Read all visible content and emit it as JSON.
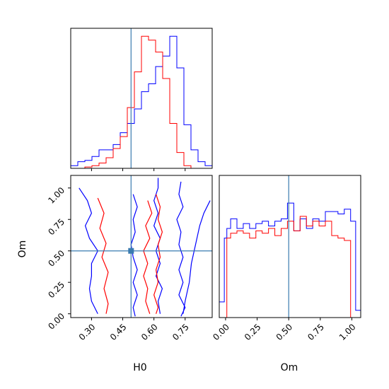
{
  "chart_data": [
    {
      "type": "histogram",
      "panel": "H0 marginal",
      "xlim": [
        0.2,
        0.88
      ],
      "truth": 0.49,
      "series": [
        {
          "color": "#0000ff",
          "edges": [
            0.2,
            0.234,
            0.268,
            0.302,
            0.336,
            0.37,
            0.404,
            0.438,
            0.472,
            0.506,
            0.54,
            0.574,
            0.608,
            0.642,
            0.676,
            0.71,
            0.744,
            0.778,
            0.812,
            0.846,
            0.88
          ],
          "heights": [
            0.02,
            0.05,
            0.06,
            0.09,
            0.14,
            0.14,
            0.18,
            0.27,
            0.34,
            0.45,
            0.58,
            0.64,
            0.77,
            0.85,
            1.0,
            0.76,
            0.33,
            0.14,
            0.05,
            0.02
          ]
        },
        {
          "color": "#ff0000",
          "edges": [
            0.2,
            0.234,
            0.268,
            0.302,
            0.336,
            0.37,
            0.404,
            0.438,
            0.472,
            0.506,
            0.54,
            0.574,
            0.608,
            0.642,
            0.676,
            0.71,
            0.744,
            0.778,
            0.812,
            0.846,
            0.88
          ],
          "heights": [
            0,
            0,
            0.01,
            0.02,
            0.04,
            0.08,
            0.15,
            0.24,
            0.46,
            0.73,
            1.0,
            0.97,
            0.88,
            0.68,
            0.34,
            0.12,
            0.02,
            0,
            0,
            0
          ]
        }
      ]
    },
    {
      "type": "histogram",
      "panel": "Om marginal",
      "xlim": [
        -0.05,
        1.07
      ],
      "truth": 0.5,
      "series": [
        {
          "color": "#0000ff",
          "edges": [
            -0.05,
            -0.01,
            0.01,
            0.04,
            0.09,
            0.14,
            0.19,
            0.24,
            0.29,
            0.34,
            0.39,
            0.44,
            0.49,
            0.54,
            0.59,
            0.64,
            0.69,
            0.74,
            0.79,
            0.84,
            0.89,
            0.94,
            0.99,
            1.03,
            1.07
          ],
          "heights": [
            0.13,
            0.66,
            0.74,
            0.82,
            0.74,
            0.78,
            0.74,
            0.78,
            0.8,
            0.76,
            0.8,
            0.82,
            0.95,
            0.72,
            0.82,
            0.74,
            0.82,
            0.8,
            0.88,
            0.88,
            0.86,
            0.9,
            0.8,
            0.06
          ]
        },
        {
          "color": "#ff0000",
          "edges": [
            0.01,
            0.04,
            0.09,
            0.14,
            0.19,
            0.24,
            0.29,
            0.34,
            0.39,
            0.44,
            0.49,
            0.54,
            0.59,
            0.64,
            0.69,
            0.74,
            0.79,
            0.84,
            0.89,
            0.94,
            0.99
          ],
          "heights": [
            0.66,
            0.7,
            0.72,
            0.7,
            0.66,
            0.72,
            0.7,
            0.74,
            0.68,
            0.74,
            0.8,
            0.72,
            0.84,
            0.76,
            0.8,
            0.76,
            0.8,
            0.68,
            0.66,
            0.64
          ]
        }
      ]
    },
    {
      "type": "contour",
      "panel": "H0 vs Om",
      "xlabel": "H0",
      "ylabel": "Om",
      "xlim": [
        0.2,
        0.88
      ],
      "ylim": [
        -0.03,
        1.1
      ],
      "xticks": [
        "0.30",
        "0.45",
        "0.60",
        "0.75"
      ],
      "xtick_values": [
        0.3,
        0.45,
        0.6,
        0.75
      ],
      "yticks": [
        "0.00",
        "0.25",
        "0.50",
        "0.75",
        "1.00"
      ],
      "ytick_values": [
        0.0,
        0.25,
        0.5,
        0.75,
        1.0
      ],
      "truth": [
        0.49,
        0.5
      ],
      "series": [
        {
          "color": "#0000ff",
          "lines": [
            [
              [
                0.24,
                1.0
              ],
              [
                0.28,
                0.9
              ],
              [
                0.3,
                0.8
              ],
              [
                0.27,
                0.7
              ],
              [
                0.29,
                0.6
              ],
              [
                0.33,
                0.5
              ],
              [
                0.3,
                0.4
              ],
              [
                0.3,
                0.3
              ],
              [
                0.29,
                0.2
              ],
              [
                0.3,
                0.1
              ],
              [
                0.33,
                0.0
              ]
            ],
            [
              [
                0.5,
                0.95
              ],
              [
                0.52,
                0.85
              ],
              [
                0.5,
                0.75
              ],
              [
                0.51,
                0.65
              ],
              [
                0.49,
                0.55
              ],
              [
                0.5,
                0.45
              ],
              [
                0.52,
                0.35
              ],
              [
                0.5,
                0.25
              ],
              [
                0.52,
                0.15
              ],
              [
                0.5,
                0.05
              ],
              [
                0.51,
                -0.02
              ]
            ],
            [
              [
                0.62,
                1.08
              ],
              [
                0.62,
                1.0
              ],
              [
                0.6,
                0.9
              ],
              [
                0.62,
                0.8
              ],
              [
                0.6,
                0.7
              ],
              [
                0.63,
                0.6
              ],
              [
                0.61,
                0.5
              ],
              [
                0.63,
                0.4
              ],
              [
                0.61,
                0.3
              ],
              [
                0.64,
                0.2
              ],
              [
                0.62,
                0.1
              ],
              [
                0.63,
                0.0
              ]
            ],
            [
              [
                0.73,
                1.05
              ],
              [
                0.72,
                0.95
              ],
              [
                0.74,
                0.85
              ],
              [
                0.71,
                0.75
              ],
              [
                0.73,
                0.65
              ],
              [
                0.72,
                0.55
              ],
              [
                0.74,
                0.45
              ],
              [
                0.72,
                0.35
              ],
              [
                0.74,
                0.25
              ],
              [
                0.72,
                0.15
              ],
              [
                0.75,
                0.05
              ],
              [
                0.73,
                -0.02
              ]
            ],
            [
              [
                0.87,
                0.9
              ],
              [
                0.84,
                0.8
              ],
              [
                0.82,
                0.7
              ],
              [
                0.8,
                0.55
              ],
              [
                0.78,
                0.4
              ],
              [
                0.77,
                0.25
              ],
              [
                0.75,
                0.1
              ],
              [
                0.74,
                0.0
              ]
            ]
          ]
        },
        {
          "color": "#ff0000",
          "lines": [
            [
              [
                0.33,
                0.92
              ],
              [
                0.36,
                0.8
              ],
              [
                0.34,
                0.68
              ],
              [
                0.37,
                0.56
              ],
              [
                0.35,
                0.45
              ],
              [
                0.38,
                0.33
              ],
              [
                0.36,
                0.2
              ],
              [
                0.38,
                0.08
              ],
              [
                0.37,
                0.0
              ]
            ],
            [
              [
                0.57,
                0.9
              ],
              [
                0.59,
                0.8
              ],
              [
                0.56,
                0.7
              ],
              [
                0.58,
                0.6
              ],
              [
                0.55,
                0.5
              ],
              [
                0.57,
                0.4
              ],
              [
                0.55,
                0.3
              ],
              [
                0.57,
                0.2
              ],
              [
                0.56,
                0.1
              ],
              [
                0.58,
                0.0
              ]
            ],
            [
              [
                0.61,
                0.95
              ],
              [
                0.63,
                0.85
              ],
              [
                0.62,
                0.75
              ],
              [
                0.64,
                0.65
              ],
              [
                0.62,
                0.55
              ],
              [
                0.63,
                0.45
              ],
              [
                0.61,
                0.35
              ],
              [
                0.62,
                0.25
              ],
              [
                0.6,
                0.15
              ],
              [
                0.62,
                0.05
              ],
              [
                0.61,
                0.0
              ]
            ]
          ]
        }
      ]
    },
    {
      "type": "axis",
      "panel": "Om marginal x-axis",
      "xlabel": "Om",
      "xticks": [
        "0.00",
        "0.25",
        "0.50",
        "0.75",
        "1.00"
      ],
      "xtick_values": [
        0.0,
        0.25,
        0.5,
        0.75,
        1.0
      ]
    }
  ]
}
